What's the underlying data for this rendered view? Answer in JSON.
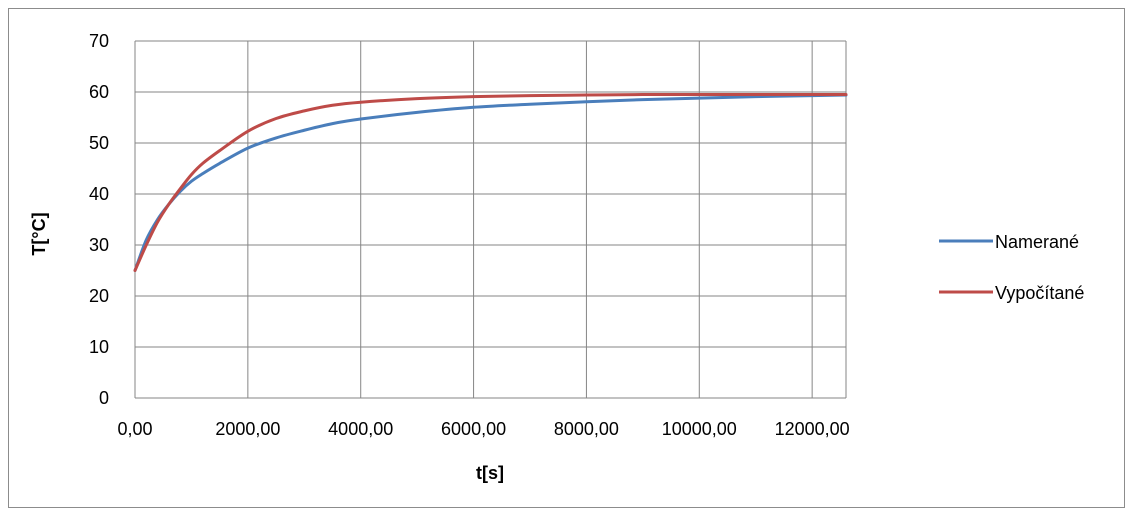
{
  "chart_data": {
    "type": "line",
    "title": "",
    "xlabel": "t[s]",
    "ylabel": "T[°C]",
    "xlim": [
      0,
      12600
    ],
    "ylim": [
      0,
      70
    ],
    "x_ticks": [
      0,
      2000,
      4000,
      6000,
      8000,
      10000,
      12000
    ],
    "x_tick_labels": [
      "0,00",
      "2000,00",
      "4000,00",
      "6000,00",
      "8000,00",
      "10000,00",
      "12000,00"
    ],
    "y_ticks": [
      0,
      10,
      20,
      30,
      40,
      50,
      60,
      70
    ],
    "y_tick_labels": [
      "0",
      "10",
      "20",
      "30",
      "40",
      "50",
      "60",
      "70"
    ],
    "grid": true,
    "legend_position": "right",
    "series": [
      {
        "name": "Namerané",
        "color": "#4a7ebb",
        "x": [
          0,
          200,
          400,
          600,
          800,
          1000,
          1200,
          1500,
          2000,
          2500,
          3000,
          3500,
          4000,
          5000,
          6000,
          7000,
          8000,
          9000,
          10000,
          11000,
          12000,
          12600
        ],
        "y": [
          25,
          31,
          35,
          38,
          40.5,
          42.5,
          44,
          46,
          49,
          51,
          52.5,
          53.8,
          54.7,
          56,
          57,
          57.6,
          58.1,
          58.5,
          58.8,
          59.1,
          59.3,
          59.4
        ]
      },
      {
        "name": "Vypočítané",
        "color": "#be4b48",
        "x": [
          0,
          200,
          400,
          600,
          800,
          1000,
          1200,
          1500,
          2000,
          2500,
          3000,
          3500,
          4000,
          5000,
          6000,
          7000,
          8000,
          9000,
          10000,
          11000,
          12000,
          12600
        ],
        "y": [
          25,
          30,
          34.5,
          38,
          41,
          43.8,
          46,
          48.5,
          52.3,
          54.8,
          56.3,
          57.4,
          58,
          58.7,
          59.1,
          59.3,
          59.4,
          59.5,
          59.5,
          59.5,
          59.5,
          59.5
        ]
      }
    ]
  }
}
